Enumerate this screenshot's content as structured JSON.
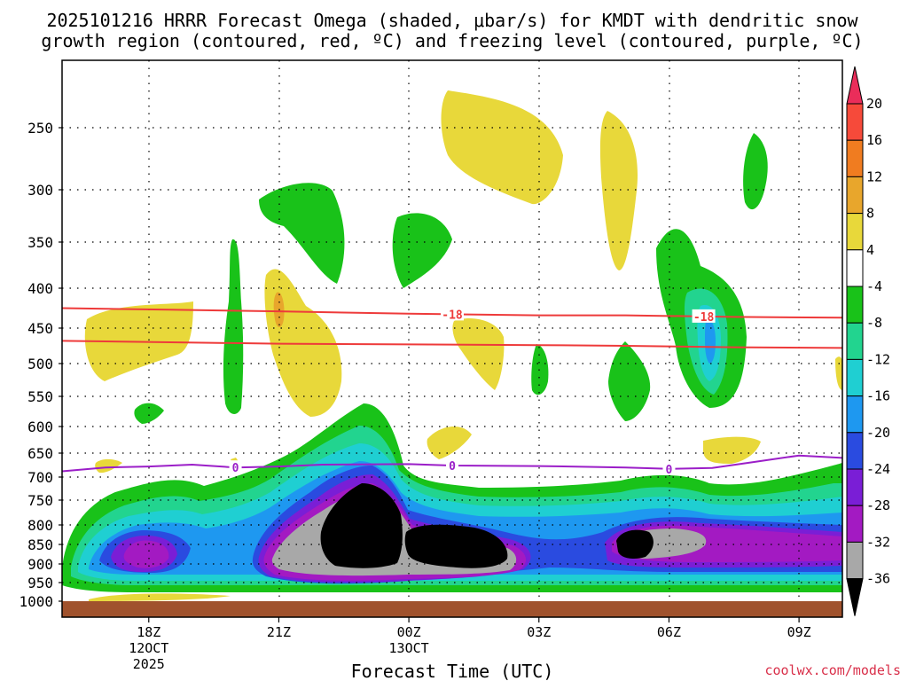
{
  "chart_data": {
    "type": "contour",
    "title_line1": "2025101216 HRRR Forecast Omega (shaded, μbar/s) for KMDT with dendritic snow",
    "title_line2": "growth region (contoured, red, ºC) and freezing level (contoured, purple, ºC)",
    "xlabel": "Forecast Time (UTC)",
    "ylabel": "",
    "credit": "coolwx.com/models",
    "yaxis": {
      "unit": "hPa",
      "range": [
        1000,
        200
      ],
      "ticks": [
        250,
        300,
        350,
        400,
        450,
        500,
        550,
        600,
        650,
        700,
        750,
        800,
        850,
        900,
        950,
        1000
      ],
      "tick_labels": [
        "250",
        "300",
        "350",
        "400",
        "450",
        "500",
        "550",
        "600",
        "650",
        "700",
        "750",
        "800",
        "850",
        "900",
        "950",
        "1000"
      ]
    },
    "xaxis": {
      "unit": "hours since 2025-10-12 16Z",
      "range": [
        0,
        18
      ],
      "ticks": [
        2,
        5,
        8,
        11,
        14,
        17
      ],
      "tick_labels": [
        {
          "line1": "18Z",
          "line2": "12OCT",
          "line3": "2025"
        },
        {
          "line1": "21Z",
          "line2": "",
          "line3": ""
        },
        {
          "line1": "00Z",
          "line2": "13OCT",
          "line3": ""
        },
        {
          "line1": "03Z",
          "line2": "",
          "line3": ""
        },
        {
          "line1": "06Z",
          "line2": "",
          "line3": ""
        },
        {
          "line1": "09Z",
          "line2": "",
          "line3": ""
        }
      ]
    },
    "grid": "dotted",
    "colorbar": {
      "levels": [
        "20",
        "16",
        "12",
        "8",
        "4",
        "-4",
        "-8",
        "-12",
        "-16",
        "-20",
        "-24",
        "-28",
        "-32",
        "-36"
      ],
      "colors": [
        "#ea2d5a",
        "#f64a3a",
        "#f07c20",
        "#e8a62c",
        "#e8d83a",
        "#ffffff",
        "#19c219",
        "#22d48f",
        "#1fcfd2",
        "#1e98f0",
        "#2a4be0",
        "#7a1ed6",
        "#a31ac2",
        "#a8a8a8",
        "#000000"
      ]
    },
    "contours": {
      "dgz_label": "-18",
      "dgz_color": "#ee3a3a",
      "dgz_top_hPa": [
        425,
        427,
        429,
        432,
        434,
        434,
        436,
        437
      ],
      "dgz_bottom_hPa": [
        468,
        470,
        472,
        473,
        474,
        475,
        477,
        478
      ],
      "dgz_hours": [
        0,
        2.5,
        5,
        8,
        11,
        13,
        15.5,
        18
      ],
      "freezing_label": "0",
      "freezing_color": "#9b1ec8",
      "freezing_hours": [
        0,
        1,
        2,
        3,
        4,
        5,
        6,
        8,
        9,
        11,
        13,
        14,
        15,
        16,
        17,
        18
      ],
      "freezing_hPa": [
        688,
        680,
        678,
        674,
        680,
        678,
        674,
        673,
        676,
        677,
        680,
        683,
        681,
        668,
        655,
        660
      ],
      "label_hours_dgz": [
        9,
        14.8
      ],
      "label_hours_frz": [
        4,
        9,
        14
      ]
    },
    "omega_features": [
      {
        "hour": 2,
        "hPa": 850,
        "min_value": -28
      },
      {
        "hour": 6.5,
        "hPa": 810,
        "min_value": -36
      },
      {
        "hour": 8.5,
        "hPa": 860,
        "min_value": -36
      },
      {
        "hour": 14,
        "hPa": 850,
        "min_value": -36
      },
      {
        "hour": 15,
        "hPa": 455,
        "min_value": -20
      },
      {
        "hour": 9.5,
        "hPa": 270,
        "max_value": 8
      },
      {
        "hour": 5,
        "hPa": 415,
        "max_value": 12
      }
    ]
  }
}
